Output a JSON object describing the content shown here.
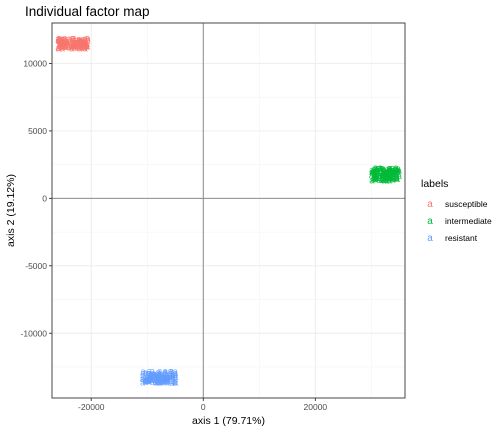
{
  "chart_data": {
    "type": "scatter",
    "title": "Individual factor map",
    "xlabel": "axis 1 (79.71%)",
    "ylabel": "axis 2 (19.12%)",
    "xlim": [
      -27000,
      36000
    ],
    "ylim": [
      -14800,
      13000
    ],
    "x_ticks": [
      -20000,
      0,
      20000
    ],
    "x_tick_labels": [
      "-20000",
      "0",
      "20000"
    ],
    "y_ticks": [
      10000,
      5000,
      0,
      -5000,
      -10000
    ],
    "y_tick_labels": [
      "10000",
      "5000",
      "0",
      "-5000",
      "-10000"
    ],
    "grid": true,
    "reference_lines": {
      "x": 0,
      "y": 0
    },
    "marker": "a",
    "legend": {
      "title": "labels",
      "placement": "right",
      "entries": [
        "susceptible",
        "intermediate",
        "resistant"
      ]
    },
    "series": [
      {
        "name": "susceptible",
        "color": "#F8766D",
        "cluster": {
          "x_range": [
            -26000,
            -20500
          ],
          "y_range": [
            11100,
            11900
          ]
        }
      },
      {
        "name": "intermediate",
        "color": "#00BA38",
        "cluster": {
          "x_range": [
            30000,
            35000
          ],
          "y_range": [
            1300,
            2300
          ]
        }
      },
      {
        "name": "resistant",
        "color": "#619CFF",
        "cluster": {
          "x_range": [
            -11000,
            -4800
          ],
          "y_range": [
            -13700,
            -12800
          ]
        }
      }
    ]
  }
}
